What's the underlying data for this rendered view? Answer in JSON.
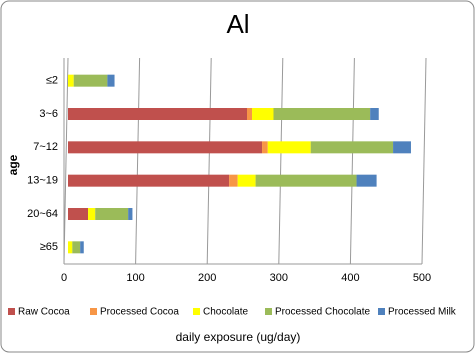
{
  "chart_data": {
    "type": "stacked-bar-horizontal",
    "title": "Al",
    "x_label": "daily exposure (ug/day)",
    "y_label": "age",
    "categories": [
      "≤2",
      "3~6",
      "7~12",
      "13~19",
      "20~64",
      "≥65"
    ],
    "series": [
      {
        "name": "Raw Cocoa",
        "color": "#c0504d",
        "values": [
          0,
          250,
          271,
          225,
          28,
          0
        ]
      },
      {
        "name": "Processed Cocoa",
        "color": "#f79646",
        "values": [
          0,
          7,
          8,
          12,
          0,
          0
        ]
      },
      {
        "name": "Chocolate",
        "color": "#ffff00",
        "values": [
          8,
          30,
          60,
          25,
          10,
          6
        ]
      },
      {
        "name": "Processed Chocolate",
        "color": "#9bbb59",
        "values": [
          47,
          135,
          115,
          141,
          46,
          11
        ]
      },
      {
        "name": "Processed Milk",
        "color": "#4f81bd",
        "values": [
          10,
          12,
          25,
          28,
          6,
          5
        ]
      }
    ],
    "xlim": [
      0,
      500
    ],
    "xticks": [
      0,
      100,
      200,
      300,
      400,
      500
    ],
    "grid": true
  }
}
